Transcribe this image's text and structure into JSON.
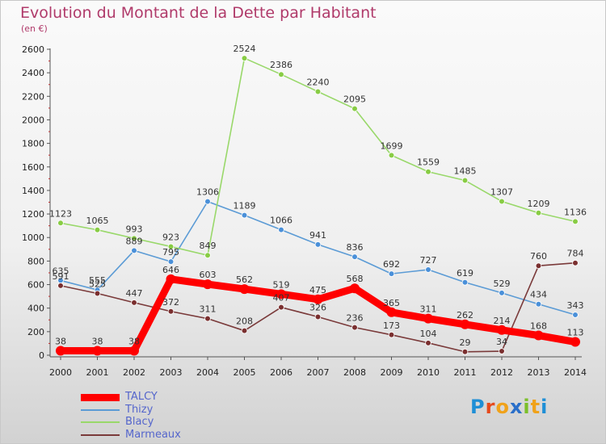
{
  "title": "Evolution du Montant de la Dette par Habitant",
  "subtitle": "(en €)",
  "logo": {
    "text": "Proxiti",
    "letters": [
      {
        "ch": "P",
        "color": "#1f8fd6"
      },
      {
        "ch": "r",
        "color": "#e64a1c"
      },
      {
        "ch": "o",
        "color": "#f0a21a"
      },
      {
        "ch": "x",
        "color": "#2a6fc9"
      },
      {
        "ch": "i",
        "color": "#7bbf2a"
      },
      {
        "ch": "t",
        "color": "#f0a21a"
      },
      {
        "ch": "i",
        "color": "#1f8fd6"
      }
    ]
  },
  "chart_data": {
    "type": "line",
    "title": "Evolution du Montant de la Dette par Habitant",
    "subtitle": "(en €)",
    "xlabel": "",
    "ylabel": "",
    "x": [
      "2000",
      "2001",
      "2002",
      "2003",
      "2004",
      "2005",
      "2006",
      "2007",
      "2008",
      "2009",
      "2010",
      "2011",
      "2012",
      "2013",
      "2014"
    ],
    "ylim": [
      0,
      2600
    ],
    "yticks": [
      0,
      200,
      400,
      600,
      800,
      1000,
      1200,
      1400,
      1600,
      1800,
      2000,
      2200,
      2400,
      2600
    ],
    "grid": false,
    "legend": "bottom-left",
    "series": [
      {
        "name": "Thizy",
        "color": "#5b9bd5",
        "marker": "#4a90d9",
        "values": [
          635,
          555,
          889,
          795,
          1306,
          1189,
          1066,
          941,
          836,
          692,
          727,
          619,
          529,
          434,
          343
        ],
        "labels": [
          "635",
          "555",
          "889",
          "795",
          "1306",
          "1189",
          "1066",
          "941",
          "836",
          "692",
          "727",
          "619",
          "529",
          "434",
          "343"
        ]
      },
      {
        "name": "Blacy",
        "color": "#99d86a",
        "marker": "#88cc44",
        "values": [
          1123,
          1065,
          993,
          923,
          849,
          2524,
          2386,
          2240,
          2095,
          1699,
          1559,
          1485,
          1307,
          1209,
          1136
        ],
        "labels": [
          "1123",
          "1065",
          "993",
          "923",
          "849",
          "2524",
          "2386",
          "2240",
          "2095",
          "1699",
          "1559",
          "1485",
          "1307",
          "1209",
          "1136"
        ]
      },
      {
        "name": "Marmeaux",
        "color": "#7a3a3a",
        "marker": "#7a2f2f",
        "values": [
          591,
          525,
          447,
          372,
          311,
          208,
          407,
          326,
          236,
          173,
          104,
          29,
          34,
          760,
          784
        ],
        "labels": [
          "591",
          "525",
          "447",
          "372",
          "311",
          "208",
          "407",
          "326",
          "236",
          "173",
          "104",
          "29",
          "34",
          "760",
          "784"
        ]
      },
      {
        "name": "TALCY",
        "color": "#ff0000",
        "marker": "#ff0000",
        "values": [
          38,
          38,
          38,
          646,
          603,
          562,
          519,
          475,
          568,
          365,
          311,
          262,
          214,
          168,
          113
        ],
        "labels": [
          "38",
          "38",
          "38",
          "646",
          "603",
          "562",
          "519",
          "475",
          "568",
          "365",
          "311",
          "262",
          "214",
          "168",
          "113"
        ]
      }
    ]
  },
  "legend_items": [
    {
      "name": "TALCY",
      "color": "#ff0000",
      "width": 9
    },
    {
      "name": "Thizy",
      "color": "#5b9bd5",
      "width": 2
    },
    {
      "name": "Blacy",
      "color": "#99d86a",
      "width": 2
    },
    {
      "name": "Marmeaux",
      "color": "#7a3a3a",
      "width": 2
    }
  ]
}
